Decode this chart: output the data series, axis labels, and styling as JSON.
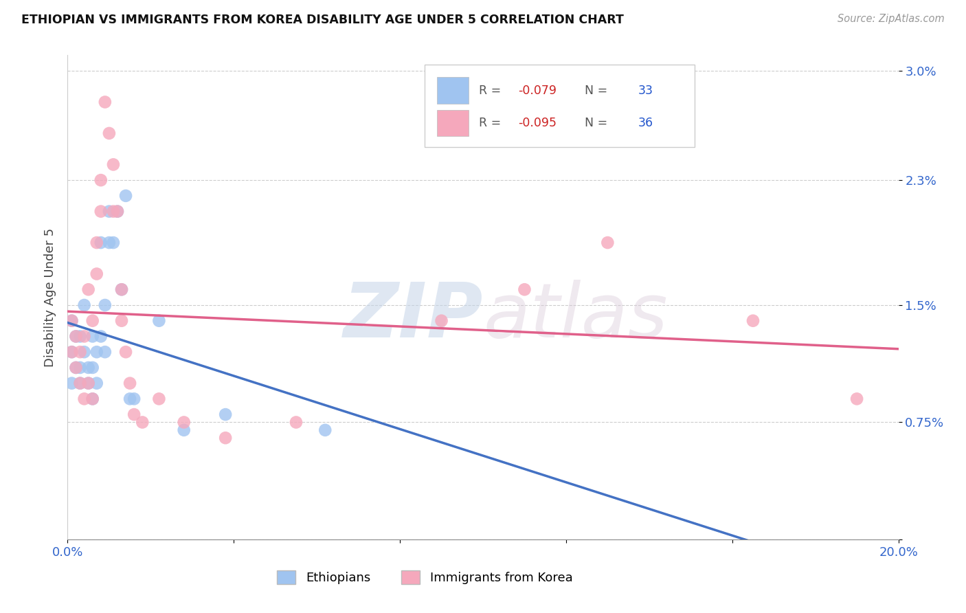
{
  "title": "ETHIOPIAN VS IMMIGRANTS FROM KOREA DISABILITY AGE UNDER 5 CORRELATION CHART",
  "source": "Source: ZipAtlas.com",
  "ylabel": "Disability Age Under 5",
  "xlim": [
    0.0,
    0.2
  ],
  "ylim": [
    0.0,
    0.031
  ],
  "watermark_zip": "ZIP",
  "watermark_atlas": "atlas",
  "color_ethiopian": "#a0c4f0",
  "color_korea": "#f5a8bc",
  "line_color_ethiopian": "#4472c4",
  "line_color_korea": "#e0608a",
  "line_color_dashed": "#b0b8c8",
  "ethiopian_x": [
    0.001,
    0.001,
    0.001,
    0.002,
    0.002,
    0.003,
    0.003,
    0.003,
    0.004,
    0.004,
    0.005,
    0.005,
    0.006,
    0.006,
    0.006,
    0.007,
    0.007,
    0.008,
    0.008,
    0.009,
    0.009,
    0.01,
    0.01,
    0.011,
    0.012,
    0.013,
    0.014,
    0.015,
    0.016,
    0.022,
    0.028,
    0.038,
    0.062
  ],
  "ethiopian_y": [
    0.01,
    0.012,
    0.014,
    0.011,
    0.013,
    0.01,
    0.011,
    0.013,
    0.012,
    0.015,
    0.01,
    0.011,
    0.009,
    0.011,
    0.013,
    0.01,
    0.012,
    0.013,
    0.019,
    0.015,
    0.012,
    0.021,
    0.019,
    0.019,
    0.021,
    0.016,
    0.022,
    0.009,
    0.009,
    0.014,
    0.007,
    0.008,
    0.007
  ],
  "korea_x": [
    0.001,
    0.001,
    0.002,
    0.002,
    0.003,
    0.003,
    0.004,
    0.004,
    0.005,
    0.005,
    0.006,
    0.006,
    0.007,
    0.007,
    0.008,
    0.008,
    0.009,
    0.01,
    0.011,
    0.011,
    0.012,
    0.013,
    0.013,
    0.014,
    0.015,
    0.016,
    0.018,
    0.022,
    0.028,
    0.038,
    0.055,
    0.09,
    0.11,
    0.13,
    0.165,
    0.19
  ],
  "korea_y": [
    0.012,
    0.014,
    0.011,
    0.013,
    0.01,
    0.012,
    0.009,
    0.013,
    0.01,
    0.016,
    0.009,
    0.014,
    0.017,
    0.019,
    0.021,
    0.023,
    0.028,
    0.026,
    0.024,
    0.021,
    0.021,
    0.014,
    0.016,
    0.012,
    0.01,
    0.008,
    0.0075,
    0.009,
    0.0075,
    0.0065,
    0.0075,
    0.014,
    0.016,
    0.019,
    0.014,
    0.009
  ],
  "ytick_vals": [
    0.0,
    0.0075,
    0.015,
    0.023,
    0.03
  ],
  "ytick_labels": [
    "",
    "0.75%",
    "1.5%",
    "2.3%",
    "3.0%"
  ],
  "xtick_vals": [
    0.0,
    0.04,
    0.08,
    0.12,
    0.16,
    0.2
  ],
  "xtick_labels": [
    "0.0%",
    "",
    "",
    "",
    "",
    "20.0%"
  ],
  "legend_R1": "-0.079",
  "legend_N1": "33",
  "legend_R2": "-0.095",
  "legend_N2": "36",
  "tick_color": "#3366cc",
  "grid_color": "#cccccc",
  "bg_color": "#ffffff"
}
